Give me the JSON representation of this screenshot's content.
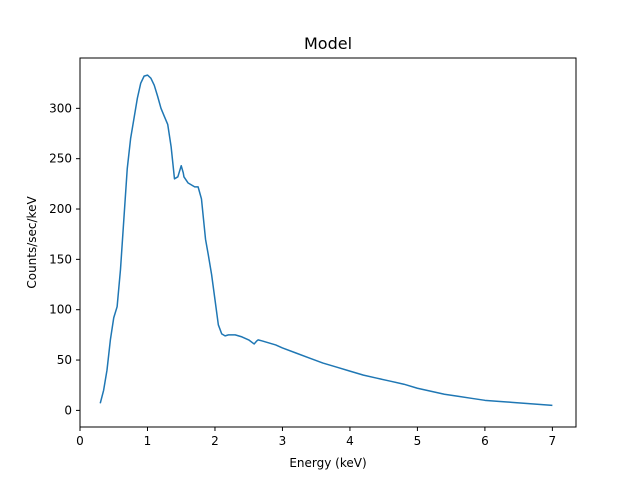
{
  "chart_data": {
    "type": "line",
    "title": "Model",
    "xlabel": "Energy (keV)",
    "ylabel": "Counts/sec/keV",
    "xlim": [
      -0.0,
      7.35
    ],
    "ylim": [
      -16.5,
      350
    ],
    "xticks": [
      0,
      1,
      2,
      3,
      4,
      5,
      6,
      7
    ],
    "yticks": [
      0,
      50,
      100,
      150,
      200,
      250,
      300
    ],
    "grid": false,
    "legend": "none",
    "series": [
      {
        "color": "#1f77b4",
        "x": [
          0.3,
          0.35,
          0.4,
          0.45,
          0.5,
          0.55,
          0.6,
          0.65,
          0.7,
          0.75,
          0.8,
          0.85,
          0.9,
          0.95,
          1.0,
          1.05,
          1.1,
          1.15,
          1.2,
          1.25,
          1.3,
          1.35,
          1.4,
          1.45,
          1.5,
          1.53,
          1.54,
          1.56,
          1.58,
          1.6,
          1.65,
          1.7,
          1.75,
          1.8,
          1.83,
          1.86,
          1.9,
          1.95,
          2.0,
          2.05,
          2.1,
          2.15,
          2.2,
          2.3,
          2.4,
          2.5,
          2.58,
          2.62,
          2.64,
          2.7,
          2.8,
          2.9,
          3.0,
          3.2,
          3.4,
          3.6,
          3.8,
          4.0,
          4.2,
          4.4,
          4.6,
          4.8,
          5.0,
          5.2,
          5.4,
          5.6,
          5.8,
          6.0,
          6.2,
          6.4,
          6.6,
          6.8,
          7.0
        ],
        "y": [
          7,
          20,
          40,
          70,
          92,
          103,
          140,
          190,
          240,
          270,
          290,
          310,
          325,
          332,
          333,
          330,
          323,
          312,
          300,
          292,
          284,
          262,
          230,
          232,
          243,
          236,
          232,
          230,
          228,
          226,
          224,
          222,
          222,
          210,
          190,
          170,
          155,
          135,
          110,
          85,
          76,
          74,
          75,
          75,
          73,
          70,
          66,
          69,
          70,
          69,
          67,
          65,
          62,
          57,
          52,
          47,
          43,
          39,
          35,
          32,
          29,
          26,
          22,
          19,
          16,
          14,
          12,
          10,
          9,
          8,
          7,
          6,
          5
        ]
      }
    ]
  }
}
